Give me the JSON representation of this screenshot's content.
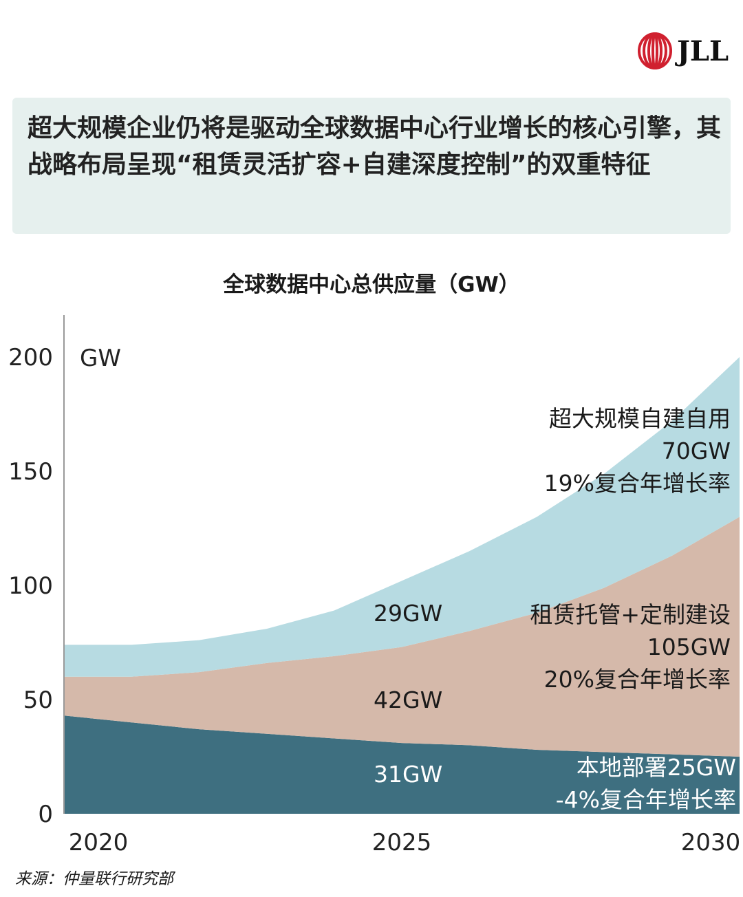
{
  "logo": {
    "text": "JLL",
    "color": "#d0202f"
  },
  "headline": "超大规模企业仍将是驱动全球数据中心行业增长的核心引擎，其战略布局呈现“租赁灵活扩容+自建深度控制”的双重特征",
  "chart_data": {
    "type": "area",
    "stacked": true,
    "title": "全球数据中心总供应量（GW）",
    "ylabel": "GW",
    "ylim": [
      0,
      200
    ],
    "yticks": [
      "0",
      "50",
      "100",
      "150",
      "200"
    ],
    "xticks": [
      "2020",
      "2025",
      "2030"
    ],
    "x": [
      2020,
      2021,
      2022,
      2023,
      2024,
      2025,
      2026,
      2027,
      2028,
      2029,
      2030
    ],
    "series": [
      {
        "color": "#3e6f80",
        "values": [
          43,
          40,
          37,
          35,
          33,
          31,
          30,
          28,
          27,
          26,
          25
        ]
      },
      {
        "color": "#d5b9aa",
        "values": [
          17,
          20,
          25,
          31,
          36,
          42,
          50,
          60,
          72,
          87,
          105
        ]
      },
      {
        "color": "#b7dbe2",
        "values": [
          14,
          14,
          14,
          15,
          20,
          29,
          35,
          42,
          50,
          59,
          70
        ]
      }
    ],
    "annotations": {
      "hyperscale": [
        "超大规模自建自用",
        "70GW",
        "19%复合年增长率"
      ],
      "colocation": [
        "租赁托管+定制建设",
        "105GW",
        "20%复合年增长率"
      ],
      "onprem": [
        "本地部署25GW",
        "-4%复合年增长率"
      ],
      "hyperscale_2025": "29GW",
      "colocation_2025": "42GW",
      "onprem_2025": "31GW"
    },
    "grid": false
  },
  "source": "来源：仲量联行研究部"
}
